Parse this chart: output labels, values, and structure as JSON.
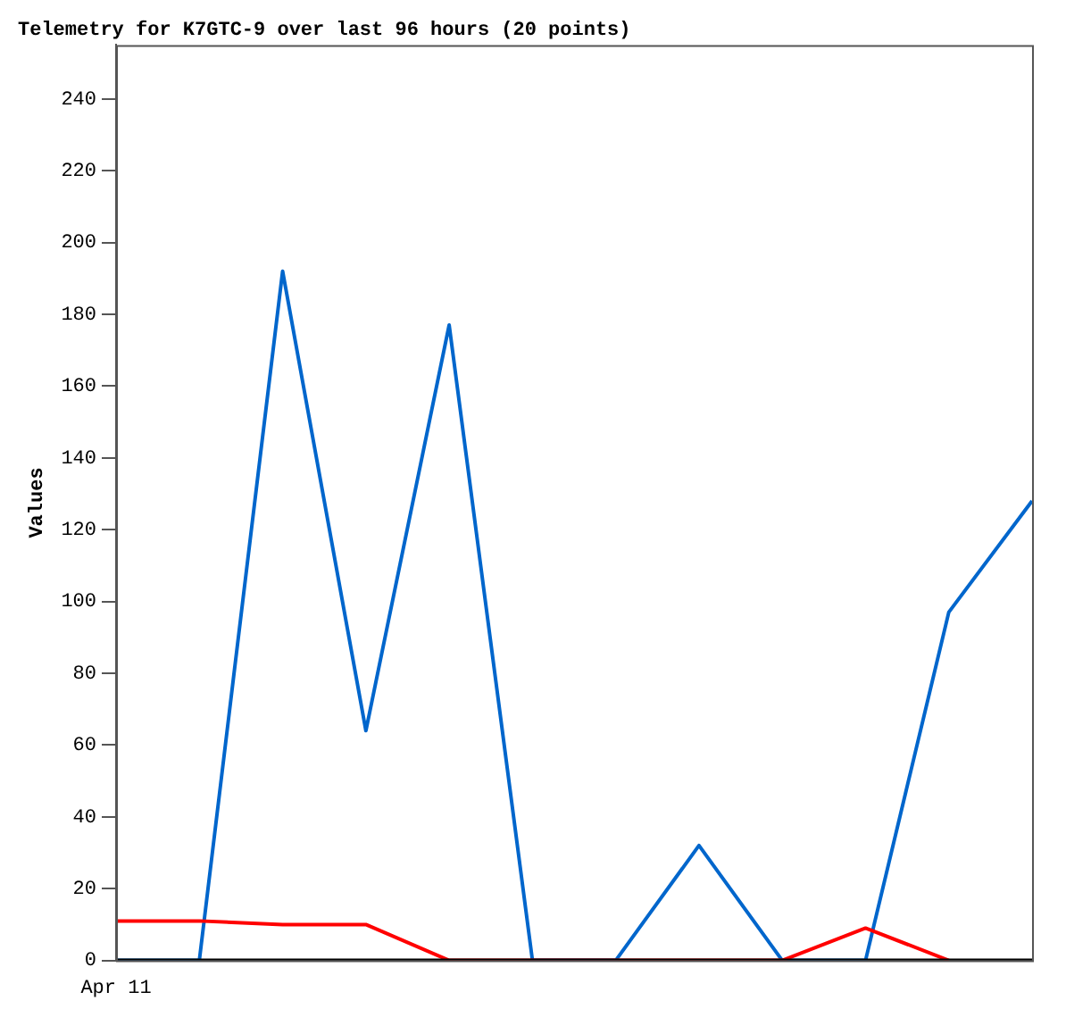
{
  "chart_data": {
    "type": "line",
    "title": "Telemetry for K7GTC-9 over last 96 hours (20 points)",
    "ylabel": "Values",
    "categories": [
      null,
      null,
      null,
      null,
      null,
      null,
      null,
      null,
      null,
      null,
      null,
      null
    ],
    "series": [
      {
        "color": "#0066cc",
        "values": [
          0,
          0,
          192,
          64,
          177,
          0,
          0,
          32,
          0,
          0,
          97,
          128
        ]
      },
      {
        "color": "#ff0000",
        "values": [
          11,
          11,
          10,
          10,
          0,
          0,
          0,
          0,
          0,
          9,
          0,
          null
        ]
      },
      {
        "color": "#000000",
        "values": [
          0,
          0,
          0,
          0,
          0,
          0,
          0,
          0,
          0,
          0,
          0,
          0
        ]
      }
    ],
    "annotations": [
      "Apr 11"
    ],
    "ylim": [
      0,
      255
    ],
    "yticks": [
      0,
      20,
      40,
      60,
      80,
      100,
      120,
      140,
      160,
      180,
      200,
      220,
      240
    ],
    "grid": false,
    "legend": false,
    "marker": "none",
    "line_style": "solid"
  }
}
